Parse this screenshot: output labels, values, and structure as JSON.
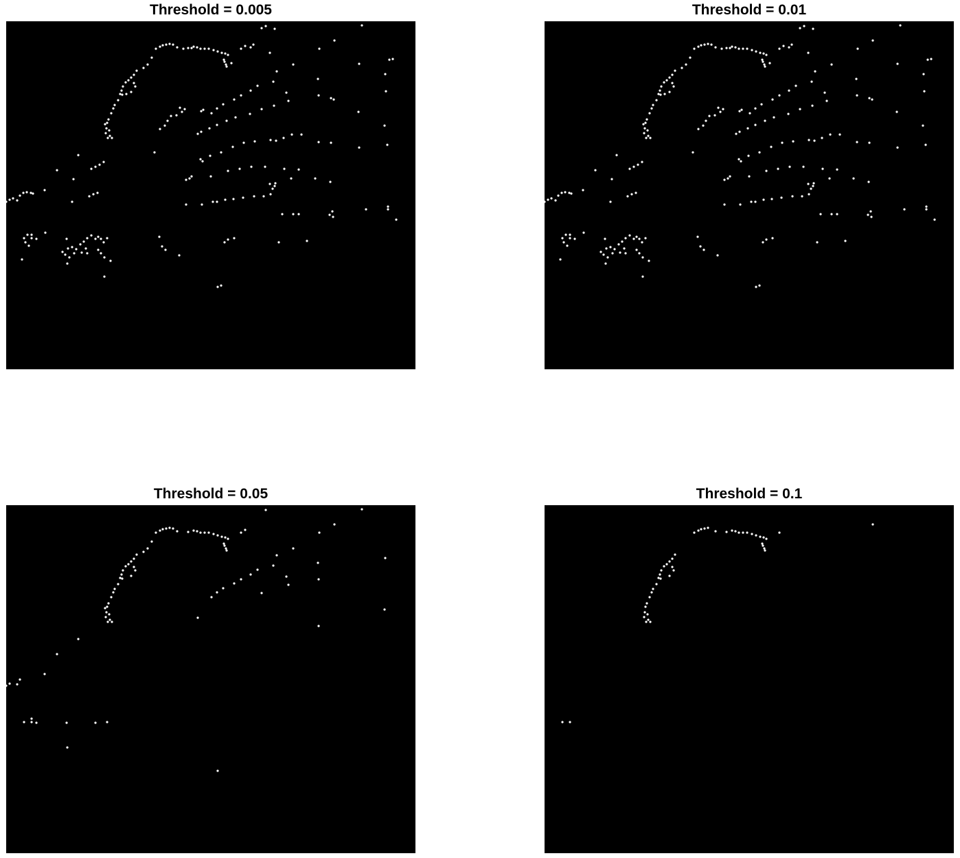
{
  "figure": {
    "panels": [
      {
        "title": "Threshold = 0.005"
      },
      {
        "title": "Threshold = 0.01"
      },
      {
        "title": "Threshold = 0.05"
      },
      {
        "title": "Threshold = 0.1"
      }
    ]
  },
  "colors": {
    "background": "#000000",
    "point": "#ffffff",
    "page": "#ffffff"
  }
}
